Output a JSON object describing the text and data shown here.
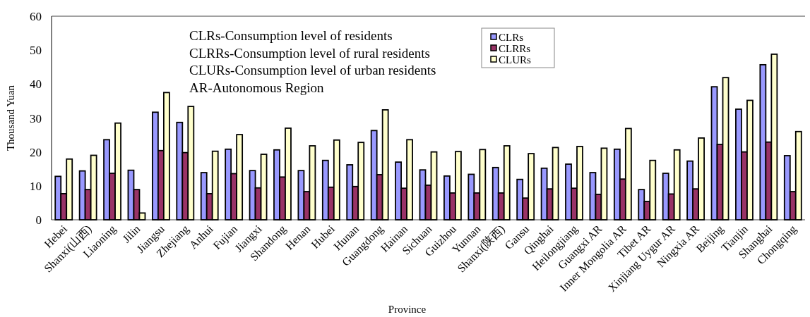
{
  "chart_data": {
    "type": "bar",
    "xlabel": "Province",
    "ylabel": "Thousand Yuan",
    "categories": [
      "Hebei",
      "Shanxi(山西)",
      "Liaoning",
      "Jilin",
      "Jiangsu",
      "Zhejiang",
      "Anhui",
      "Fujian",
      "Jiangxi",
      "Shandong",
      "Henan",
      "Hubei",
      "Hunan",
      "Guangdong",
      "Hainan",
      "Sichuan",
      "Guizhou",
      "Yunnan",
      "Shanxi(陕西)",
      "Gansu",
      "Qinghai",
      "Heilongjiang",
      "Guangxi AR",
      "Inner Mongolia AR",
      "Tibet AR",
      "Xinjiang Uygur AR",
      "Ningxia AR",
      "Beijing",
      "Tianjin",
      "Shanghai",
      "Chongqing"
    ],
    "series": [
      {
        "name": "CLRs",
        "color": "#9999ff",
        "values": [
          12.8,
          14.4,
          23.6,
          14.6,
          31.7,
          28.7,
          13.9,
          20.8,
          14.5,
          20.6,
          14.5,
          17.5,
          16.2,
          26.3,
          17.0,
          14.7,
          12.9,
          13.4,
          15.4,
          11.9,
          15.2,
          16.4,
          13.9,
          20.8,
          8.9,
          13.7,
          17.3,
          39.2,
          32.6,
          45.7,
          18.9
        ]
      },
      {
        "name": "CLRRs",
        "color": "#993366",
        "values": [
          7.7,
          8.9,
          13.7,
          8.9,
          20.4,
          19.8,
          7.7,
          13.6,
          9.4,
          12.6,
          8.3,
          9.6,
          9.8,
          13.3,
          9.3,
          10.2,
          7.9,
          7.9,
          7.9,
          6.4,
          9.1,
          9.3,
          7.5,
          12.0,
          5.4,
          7.6,
          9.1,
          22.2,
          20.0,
          22.9,
          8.3
        ]
      },
      {
        "name": "CLURs",
        "color": "#ffffcc",
        "values": [
          17.9,
          19.0,
          28.5,
          2.0,
          37.5,
          33.4,
          20.2,
          25.1,
          19.3,
          27.0,
          21.8,
          23.5,
          22.8,
          32.4,
          23.6,
          20.0,
          20.1,
          20.7,
          21.8,
          19.5,
          21.3,
          21.6,
          21.1,
          26.9,
          17.5,
          20.6,
          24.1,
          41.9,
          35.2,
          48.8,
          26.0
        ]
      }
    ],
    "ylim": [
      0,
      60
    ],
    "yticks": [
      0,
      10,
      20,
      30,
      40,
      50,
      60
    ],
    "grid": false,
    "legend": "top",
    "annotations": [
      "CLRs-Consumption level of residents",
      "CLRRs-Consumption level of rural residents",
      "CLURs-Consumption level of urban residents",
      "AR-Autonomous Region"
    ]
  }
}
